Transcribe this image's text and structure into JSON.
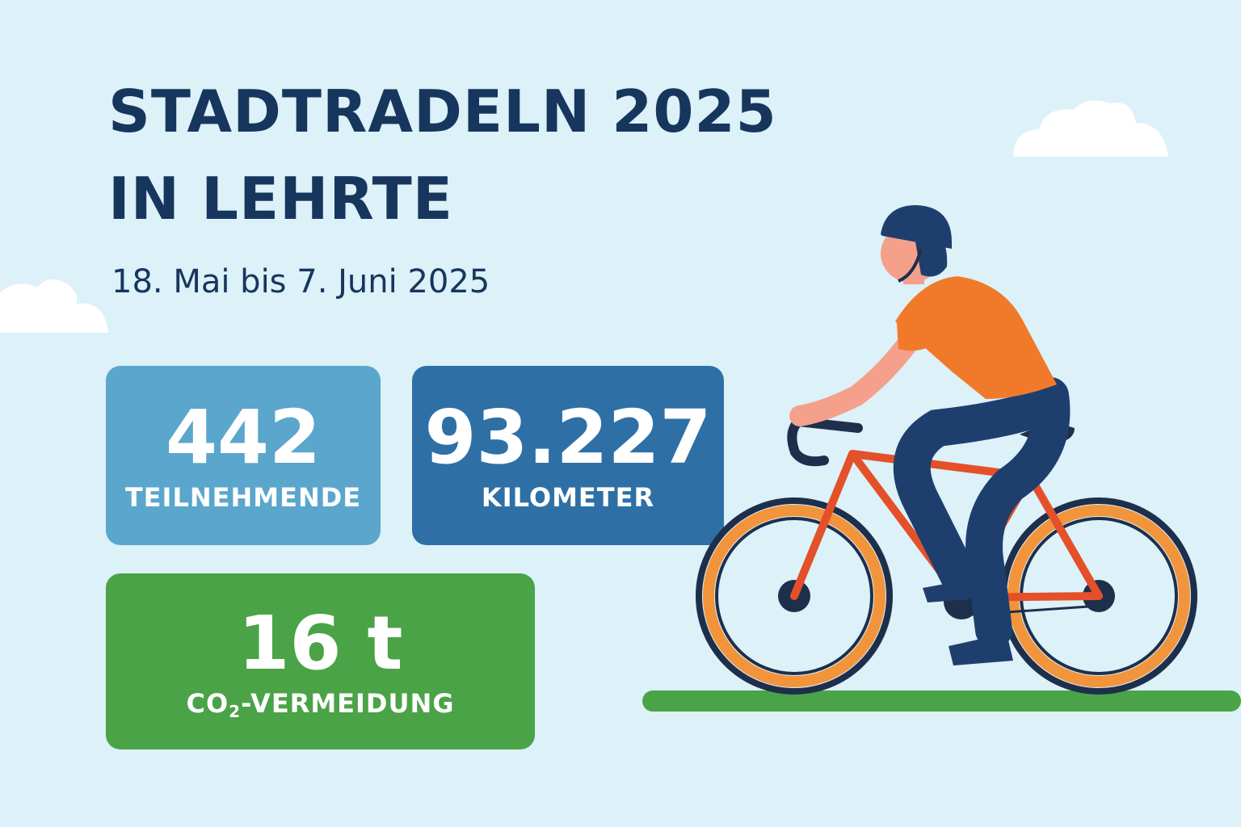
{
  "title": {
    "line1": "STADTRADELN 2025",
    "line2": "IN LEHRTE"
  },
  "subtitle": "18. Mai bis 7. Juni 2025",
  "stats": {
    "participants": {
      "value": "442",
      "label": "TEILNEHMENDE"
    },
    "kilometers": {
      "value": "93.227",
      "label": "KILOMETER"
    },
    "co2": {
      "value": "16 t",
      "label_prefix": "CO",
      "label_sub": "2",
      "label_suffix": "-VERMEIDUNG"
    }
  },
  "colors": {
    "background": "#dcf1f8",
    "title": "#17365d",
    "card_light_blue": "#5aa6cc",
    "card_dark_blue": "#2e70a6",
    "card_green": "#4aa346",
    "bike_frame": "#e4502a",
    "wheel_rim": "#f2943c",
    "shirt": "#f07a2a"
  }
}
